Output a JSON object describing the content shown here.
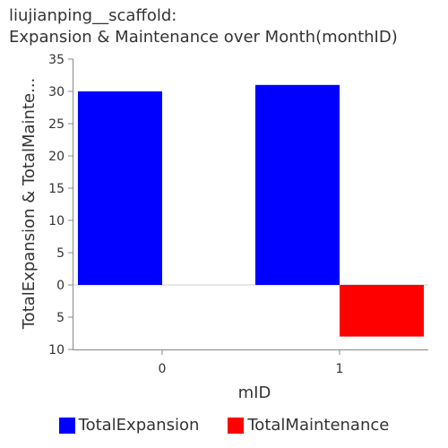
{
  "chart_data": {
    "type": "bar",
    "title_line1": "liujianping__scaffold:",
    "title_line2": "Expansion & Maintenance over Month(monthID)",
    "xlabel": "mID",
    "ylabel": "TotalExpansion & TotalMainte...",
    "categories": [
      "0",
      "1"
    ],
    "series": [
      {
        "name": "TotalExpansion",
        "color": "#0000ff",
        "values": [
          30,
          31
        ]
      },
      {
        "name": "TotalMaintenance",
        "color": "#ff0000",
        "values": [
          0,
          -8
        ]
      }
    ],
    "ylim": [
      -10,
      35
    ],
    "yticks": [
      {
        "value": 35,
        "label": "35"
      },
      {
        "value": 30,
        "label": "30"
      },
      {
        "value": 25,
        "label": "25"
      },
      {
        "value": 20,
        "label": "20"
      },
      {
        "value": 15,
        "label": "15"
      },
      {
        "value": 10,
        "label": "10"
      },
      {
        "value": 5,
        "label": "5"
      },
      {
        "value": 0,
        "label": "0"
      },
      {
        "value": -5,
        "label": "5"
      },
      {
        "value": -10,
        "label": "10"
      }
    ],
    "grid": false,
    "legend_position": "bottom"
  }
}
